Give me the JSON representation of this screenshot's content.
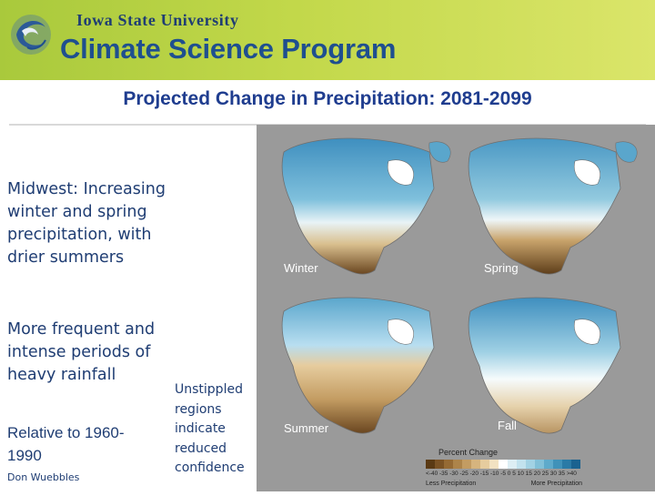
{
  "header": {
    "institution": "Iowa State University",
    "program": "Climate Science Program"
  },
  "title": "Projected Change in Precipitation: 2081-2099",
  "bullets": [
    "Midwest: Increasing winter and spring precipitation, with drier summers",
    "More frequent and intense periods of heavy rainfall"
  ],
  "note_relative": "Relative to 1960-1990",
  "credit": "Don Wuebbles",
  "note_unstippled": "Unstippled regions indicate reduced confidence",
  "maps": {
    "winter": "Winter",
    "spring": "Spring",
    "summer": "Summer",
    "fall": "Fall"
  },
  "legend": {
    "title": "Percent Change",
    "ticks": "<-40 -35 -30 -25 -20 -15 -10 -5  0  5  10  15  20  25  30  35  >40",
    "less": "Less Precipitation",
    "more": "More Precipitation",
    "colors": [
      "#5a3a14",
      "#7a5224",
      "#956a34",
      "#ad844a",
      "#c39c62",
      "#d6b47e",
      "#e6cc9e",
      "#f2e2c2",
      "#ffffff",
      "#ddeef4",
      "#c2e2ee",
      "#a2d2e4",
      "#82c0d8",
      "#5eaacb",
      "#4092b9",
      "#2a7aa6",
      "#1a6290"
    ]
  }
}
